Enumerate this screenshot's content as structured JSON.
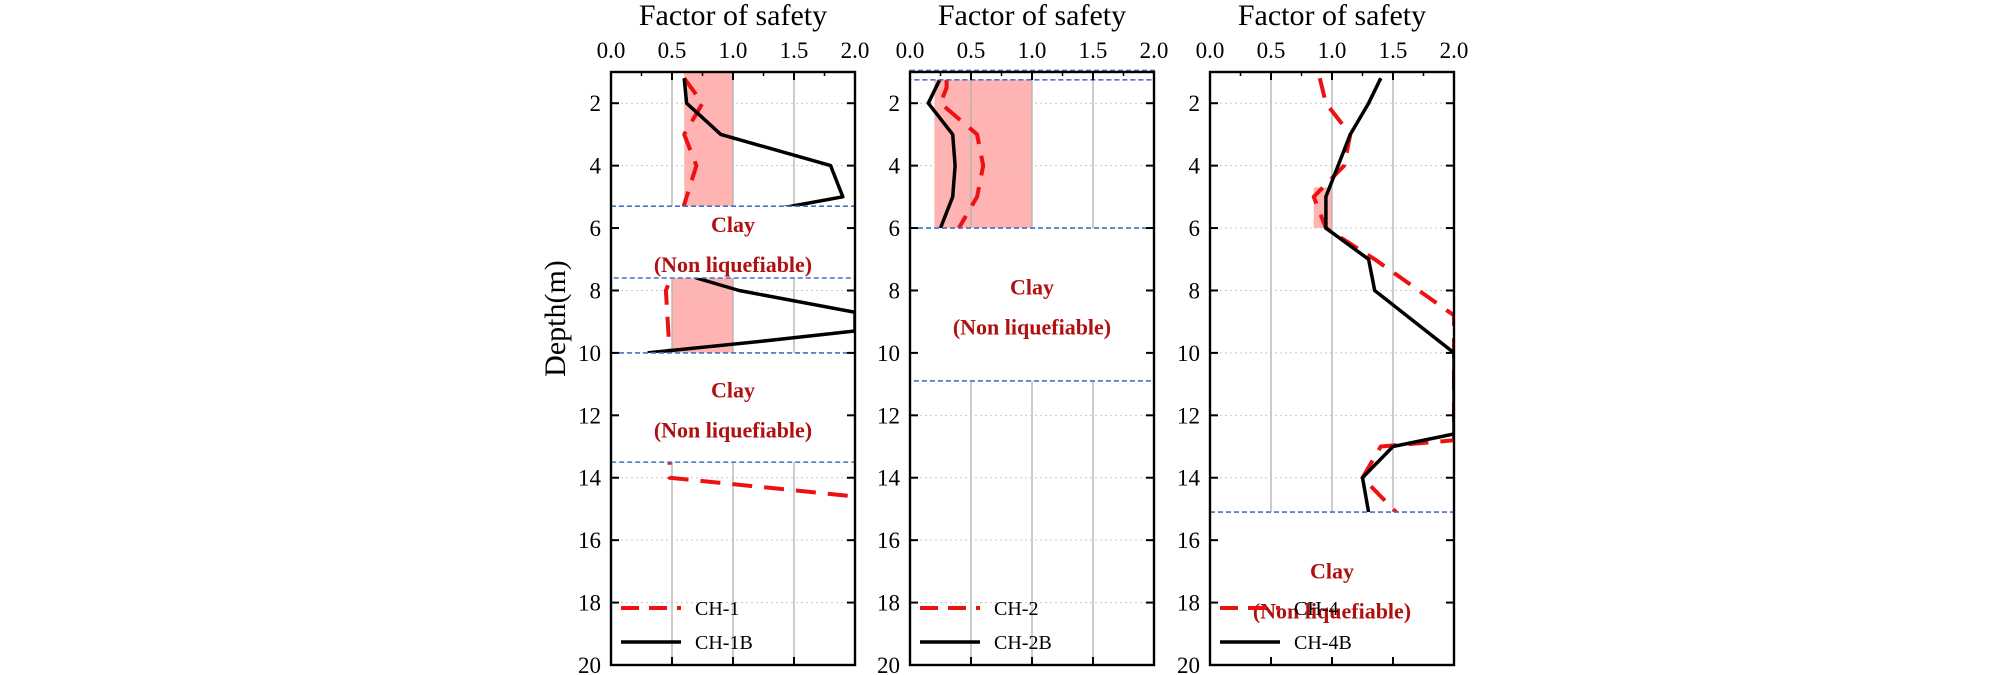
{
  "colors": {
    "dashed_series": "#ee1111",
    "solid_series": "#000000",
    "liquefaction_zone": "#ffb3b3",
    "clay_box_border": "#4472c4",
    "clay_text": "#b01010",
    "grid": "#b0b0b0"
  },
  "y_axis": {
    "label": "Depth(m)"
  },
  "chart_data": [
    {
      "type": "line",
      "title": "Factor of safety",
      "xlabel": "Factor of safety",
      "ylabel": "Depth(m)",
      "xlim": [
        0,
        2
      ],
      "ylim": [
        20,
        1
      ],
      "y_inverted": true,
      "x_ticks": [
        "0.0",
        "0.5",
        "1.0",
        "1.5",
        "2.0"
      ],
      "y_ticks": [
        "2",
        "4",
        "6",
        "8",
        "10",
        "12",
        "14",
        "16",
        "18",
        "20"
      ],
      "legend_position": "bottom-left",
      "series": [
        {
          "name": "CH-1",
          "style": "dashed",
          "points": [
            [
              0.6,
              1.2
            ],
            [
              0.75,
              2
            ],
            [
              0.6,
              3
            ],
            [
              0.7,
              4
            ],
            [
              0.62,
              5
            ],
            [
              0.58,
              5.5
            ],
            [
              0.5,
              7.5
            ],
            [
              0.45,
              8
            ],
            [
              0.48,
              10
            ],
            [
              0.48,
              14
            ],
            [
              2.0,
              14.6
            ]
          ]
        },
        {
          "name": "CH-1B",
          "style": "solid",
          "points": [
            [
              0.6,
              1.2
            ],
            [
              0.62,
              2
            ],
            [
              0.9,
              3
            ],
            [
              1.8,
              4
            ],
            [
              1.9,
              5
            ],
            [
              1.2,
              5.5
            ],
            [
              0.7,
              7.6
            ],
            [
              1.05,
              8
            ],
            [
              2.0,
              8.7
            ],
            [
              2.0,
              9.3
            ],
            [
              1.3,
              9.6
            ],
            [
              0.3,
              10
            ]
          ]
        }
      ],
      "liquefaction_zones": [
        [
          0.6,
          1,
          1,
          5.3
        ],
        [
          0.5,
          1,
          7.5,
          10
        ]
      ],
      "clay_layers": [
        {
          "top": 5.3,
          "bottom": 7.6,
          "line1": "Clay",
          "line2": "(Non liquefiable)"
        },
        {
          "top": 10,
          "bottom": 13.5,
          "line1": "Clay",
          "line2": "(Non liquefiable)"
        }
      ]
    },
    {
      "type": "line",
      "title": "Factor of safety",
      "xlabel": "Factor of safety",
      "ylabel": "",
      "xlim": [
        0,
        2
      ],
      "ylim": [
        20,
        1
      ],
      "y_inverted": true,
      "x_ticks": [
        "0.0",
        "0.5",
        "1.0",
        "1.5",
        "2.0"
      ],
      "y_ticks": [
        "2",
        "4",
        "6",
        "8",
        "10",
        "12",
        "14",
        "16",
        "18",
        "20"
      ],
      "legend_position": "bottom-left",
      "series": [
        {
          "name": "CH-2",
          "style": "dashed",
          "points": [
            [
              0.3,
              1.2
            ],
            [
              0.3,
              1.5
            ],
            [
              0.25,
              2
            ],
            [
              0.55,
              3
            ],
            [
              0.6,
              4
            ],
            [
              0.55,
              5
            ],
            [
              0.4,
              6
            ]
          ]
        },
        {
          "name": "CH-2B",
          "style": "solid",
          "points": [
            [
              0.25,
              1.2
            ],
            [
              0.2,
              1.6
            ],
            [
              0.15,
              2
            ],
            [
              0.35,
              3
            ],
            [
              0.37,
              4
            ],
            [
              0.35,
              5
            ],
            [
              0.25,
              6
            ]
          ]
        }
      ],
      "liquefaction_zones": [
        [
          0.2,
          1,
          1,
          6
        ]
      ],
      "clay_layers": [
        {
          "top": 0.95,
          "bottom": 1.25,
          "line1": "",
          "line2": ""
        },
        {
          "top": 6,
          "bottom": 10.9,
          "line1": "Clay",
          "line2": "(Non liquefiable)"
        }
      ]
    },
    {
      "type": "line",
      "title": "Factor of safety",
      "xlabel": "Factor of safety",
      "ylabel": "",
      "xlim": [
        0,
        2
      ],
      "ylim": [
        20,
        1
      ],
      "y_inverted": true,
      "x_ticks": [
        "0.0",
        "0.5",
        "1.0",
        "1.5",
        "2.0"
      ],
      "y_ticks": [
        "2",
        "4",
        "6",
        "8",
        "10",
        "12",
        "14",
        "16",
        "18",
        "20"
      ],
      "legend_position": "bottom-left",
      "series": [
        {
          "name": "CH-4",
          "style": "dashed",
          "points": [
            [
              0.9,
              1.2
            ],
            [
              0.95,
              2
            ],
            [
              1.15,
              3
            ],
            [
              1.1,
              4
            ],
            [
              0.85,
              5
            ],
            [
              0.95,
              6
            ],
            [
              1.35,
              7
            ],
            [
              2.0,
              8.8
            ],
            [
              2.0,
              12.8
            ],
            [
              1.4,
              13
            ],
            [
              1.25,
              14
            ],
            [
              1.55,
              15.2
            ]
          ]
        },
        {
          "name": "CH-4B",
          "style": "solid",
          "points": [
            [
              1.4,
              1.2
            ],
            [
              1.3,
              2
            ],
            [
              1.15,
              3
            ],
            [
              1.05,
              4
            ],
            [
              0.95,
              5
            ],
            [
              0.95,
              6
            ],
            [
              1.3,
              7
            ],
            [
              1.35,
              8
            ],
            [
              2.0,
              10
            ],
            [
              2.0,
              12.6
            ],
            [
              1.5,
              13
            ],
            [
              1.25,
              14
            ],
            [
              1.3,
              15.1
            ]
          ]
        }
      ],
      "liquefaction_zones": [
        [
          0.85,
          1,
          4.7,
          6
        ]
      ],
      "clay_layers": [
        {
          "top": 15.1,
          "bottom": 20,
          "line1": "Clay",
          "line2": "(Non liquefiable)"
        }
      ]
    }
  ]
}
